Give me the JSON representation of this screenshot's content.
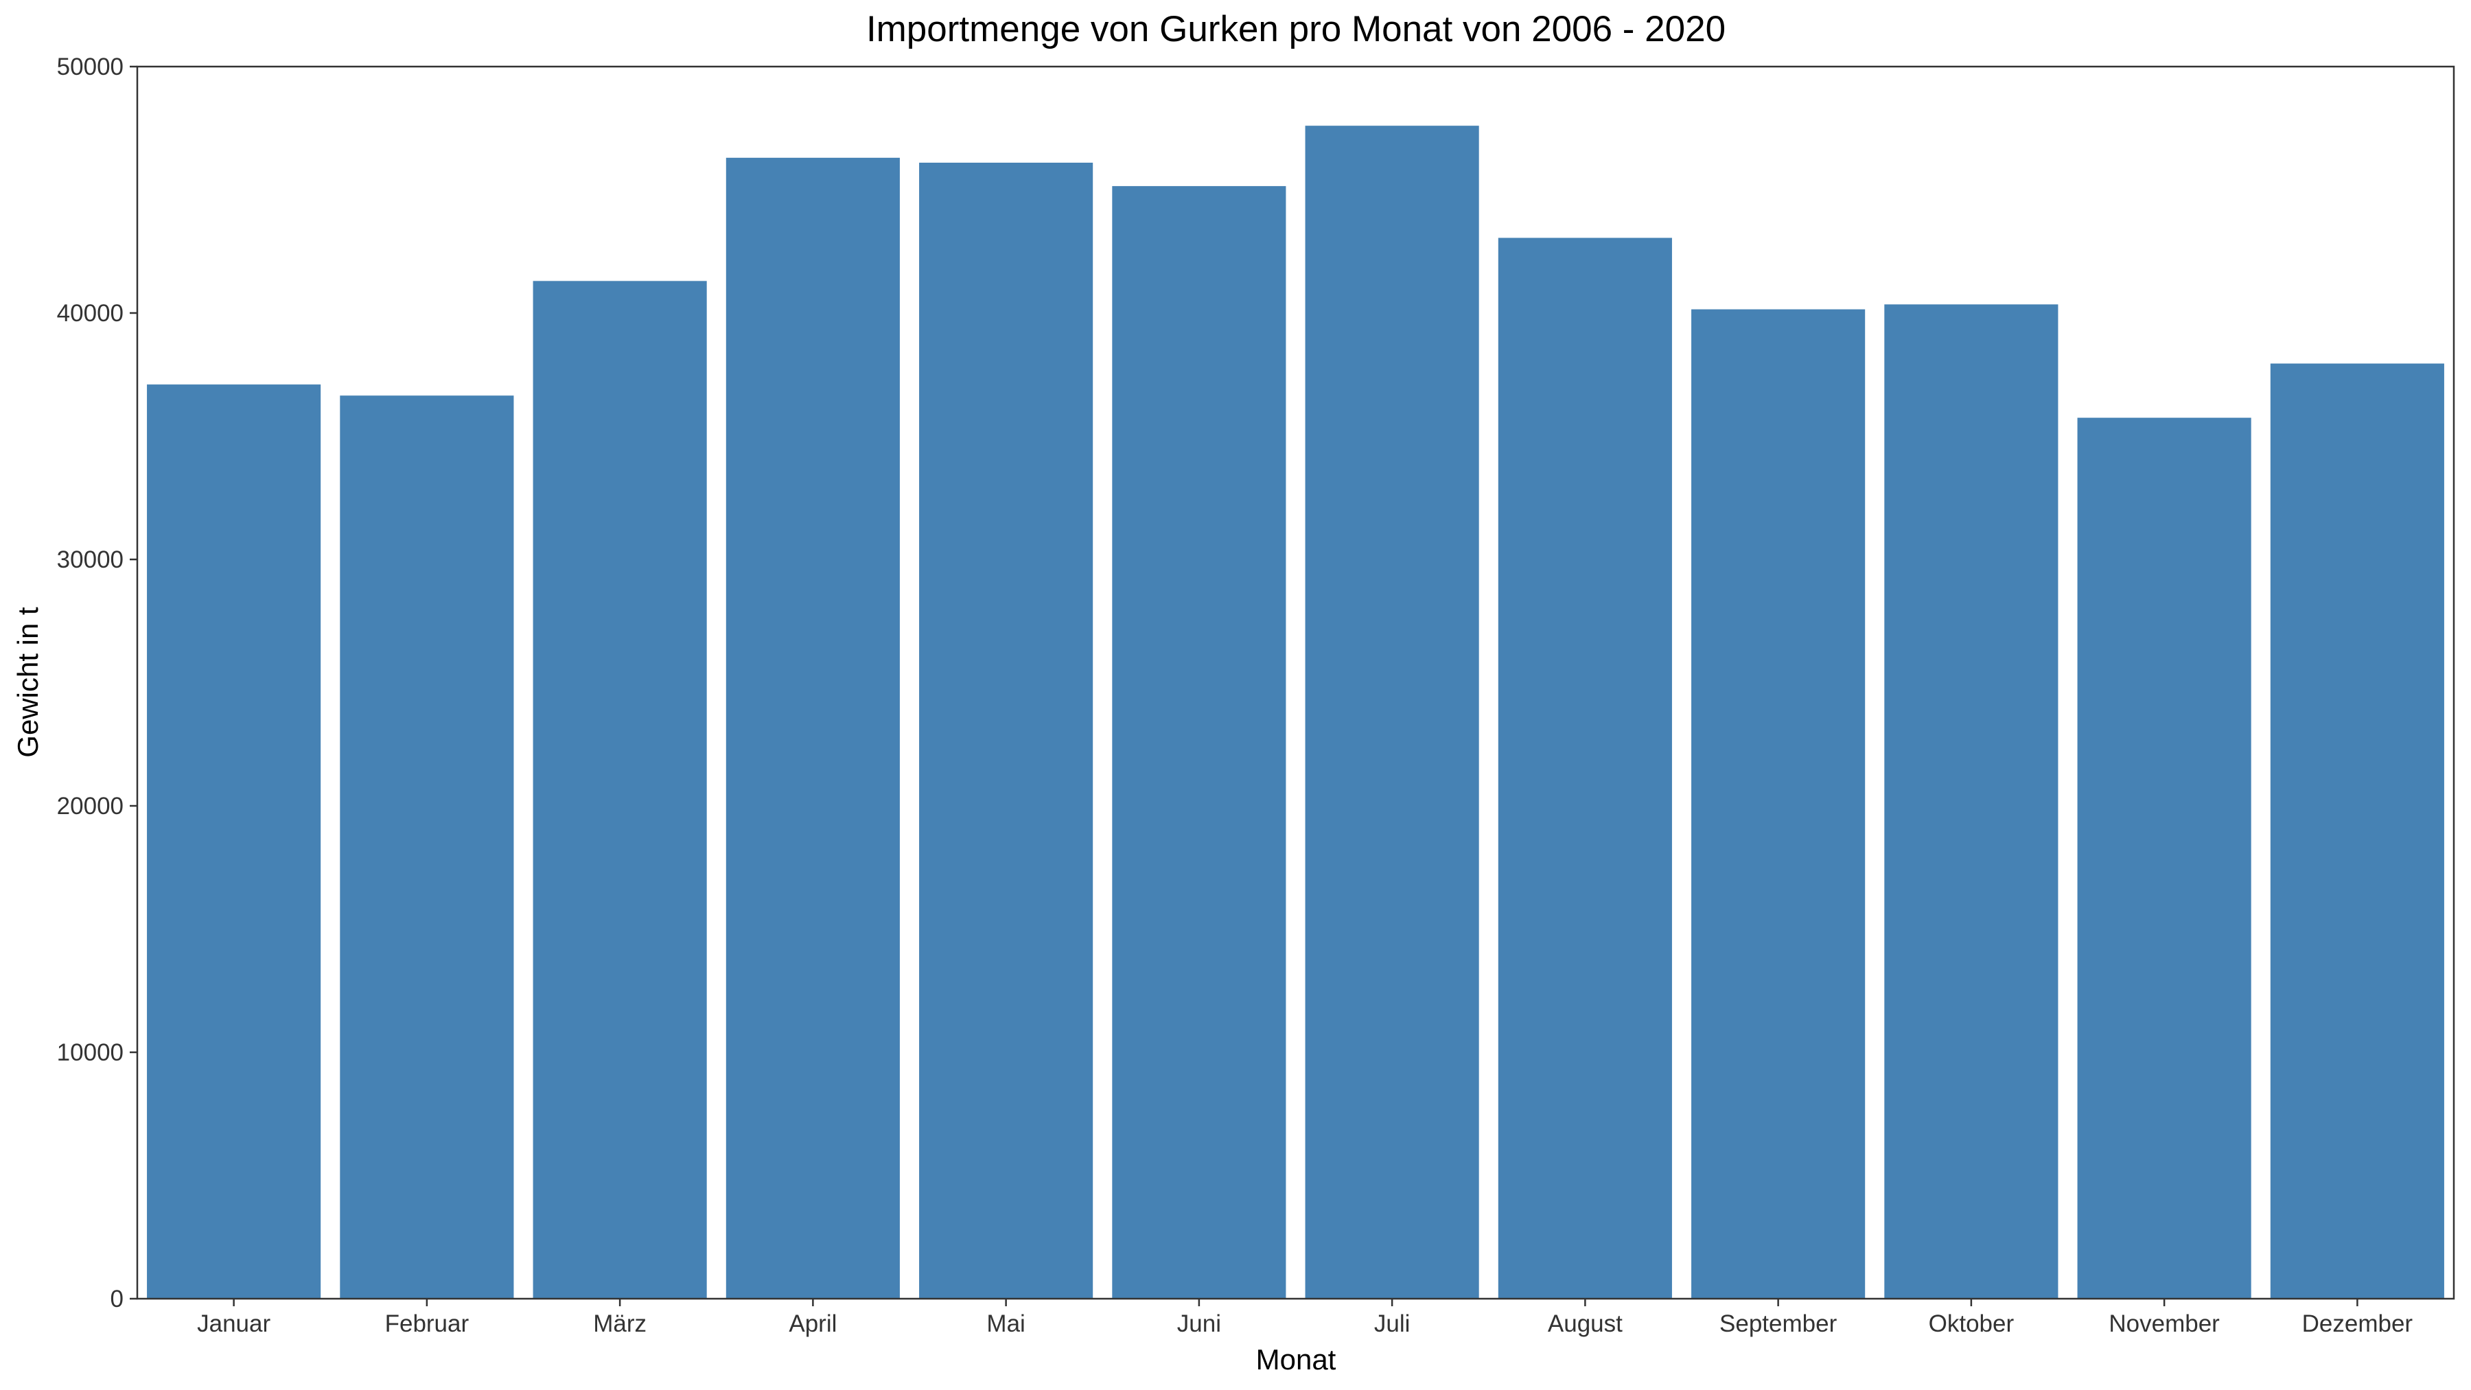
{
  "chart_data": {
    "type": "bar",
    "title": "Importmenge von Gurken pro Monat von 2006 - 2020",
    "xlabel": "Monat",
    "ylabel": "Gewicht in t",
    "categories": [
      "Januar",
      "Februar",
      "März",
      "April",
      "Mai",
      "Juni",
      "Juli",
      "August",
      "September",
      "Oktober",
      "November",
      "Dezember"
    ],
    "values": [
      37100,
      36650,
      41300,
      46300,
      46100,
      45150,
      47600,
      43050,
      40150,
      40350,
      35750,
      37950
    ],
    "ylim": [
      0,
      50000
    ],
    "yticks": [
      0,
      10000,
      20000,
      30000,
      40000,
      50000
    ],
    "ytick_labels": [
      "0",
      "10000",
      "20000",
      "30000",
      "40000",
      "50000"
    ],
    "bar_color": "#4682B4",
    "grid": false,
    "legend": "none"
  }
}
